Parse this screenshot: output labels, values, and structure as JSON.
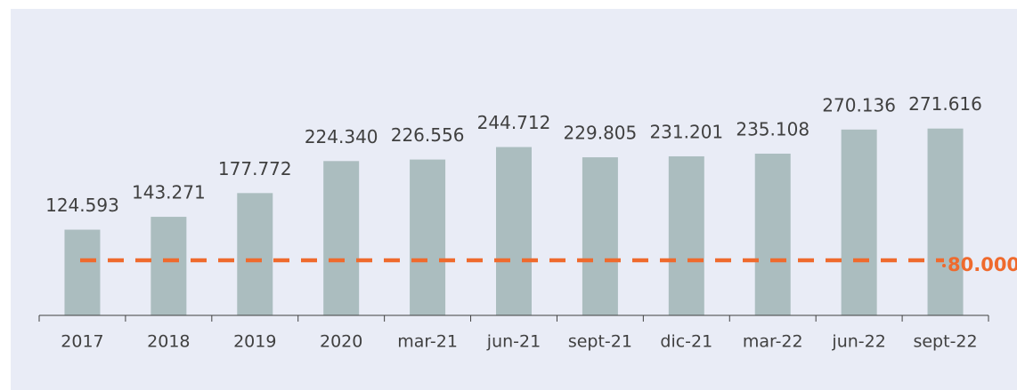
{
  "chart_data": {
    "type": "bar",
    "categories": [
      "2017",
      "2018",
      "2019",
      "2020",
      "mar-21",
      "jun-21",
      "sept-21",
      "dic-21",
      "mar-22",
      "jun-22",
      "sept-22"
    ],
    "values": [
      124593,
      143271,
      177772,
      224340,
      226556,
      244712,
      229805,
      231201,
      235108,
      270136,
      271616
    ],
    "value_labels": [
      "124.593",
      "143.271",
      "177.772",
      "224.340",
      "226.556",
      "244.712",
      "229.805",
      "231.201",
      "235.108",
      "270.136",
      "271.616"
    ],
    "color": "#abbdbf",
    "ylim": [
      0,
      350000
    ],
    "reference_line": {
      "value": 80000,
      "label": "80.000",
      "color": "#ef6a2d"
    }
  }
}
